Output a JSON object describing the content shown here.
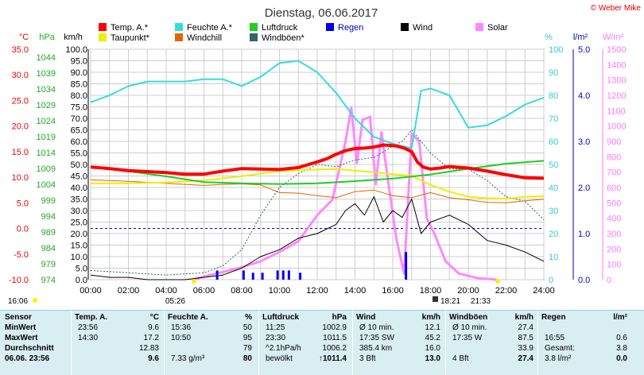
{
  "title": "Dienstag, 06.06.2017",
  "copyright": "© Weber Mike",
  "colors": {
    "temp": "#ff0000",
    "humidity": "#33dddd",
    "pressure": "#22cc22",
    "wind": "#000000",
    "dew": "#eeee00",
    "windchill": "#dd6600",
    "gust": "#336666",
    "rain": "#0000ee",
    "solar": "#ff88ff",
    "stats_bg": "#d8eef2"
  },
  "legend": [
    {
      "label": "Temp. A.*",
      "color": "#ff0000"
    },
    {
      "label": "Feuchte A.*",
      "color": "#33dddd"
    },
    {
      "label": "Luftdruck",
      "color": "#22cc22"
    },
    {
      "label": "Regen",
      "color": "#0000ee"
    },
    {
      "label": "Wind",
      "color": "#000000"
    },
    {
      "label": "Solar",
      "color": "#ff88ff"
    },
    {
      "label": "Taupunkt*",
      "color": "#eeee00"
    },
    {
      "label": "Windchill",
      "color": "#dd6600"
    },
    {
      "label": "Windböen*",
      "color": "#336666"
    }
  ],
  "axis_units": {
    "temp": "°C",
    "pressure": "hPa",
    "wind": "km/h",
    "humidity": "%",
    "rain": "l/m²",
    "solar": "W/m²"
  },
  "axes": {
    "temp": [
      "35.0",
      "30.0",
      "25.0",
      "20.0",
      "15.0",
      "10.0",
      "5.0",
      "0.0",
      "-5.0",
      "-10.0"
    ],
    "pressure": [
      "1044",
      "1039",
      "1034",
      "1029",
      "1024",
      "1019",
      "1014",
      "1009",
      "1004",
      "999",
      "994",
      "989",
      "984",
      "979",
      "974"
    ],
    "wind": [
      "100.0",
      "95.0",
      "90.0",
      "85.0",
      "80.0",
      "75.0",
      "70.0",
      "65.0",
      "60.0",
      "55.0",
      "50.0",
      "45.0",
      "40.0",
      "35.0",
      "30.0",
      "25.0",
      "20.0",
      "15.0",
      "10.0",
      "5.0",
      "0.0"
    ],
    "humidity": [
      "100",
      "90",
      "80",
      "70",
      "60",
      "50",
      "40",
      "30",
      "20",
      "10",
      "0"
    ],
    "rain": [
      "5.0",
      "4.0",
      "3.0",
      "2.0",
      "1.0",
      "0.0"
    ],
    "solar": [
      "1500",
      "1400",
      "1300",
      "1200",
      "1100",
      "1000",
      "900",
      "800",
      "700",
      "600",
      "500",
      "400",
      "300",
      "200",
      "100",
      "0"
    ],
    "time": [
      "00:00",
      "02:00",
      "04:00",
      "06:00",
      "08:00",
      "10:00",
      "12:00",
      "14:00",
      "16:00",
      "18:00",
      "20:00",
      "22:00",
      "24:00"
    ]
  },
  "sun": {
    "sunrise": "05:26",
    "sunset": "21:33",
    "daylight": "16:06",
    "solar_noon": "18:21"
  },
  "chart_data": {
    "type": "line",
    "x_unit": "hour",
    "xlim": [
      0,
      24
    ],
    "series": [
      {
        "name": "Temp. A.*",
        "axis": "temp",
        "unit": "°C",
        "x": [
          0,
          1,
          2,
          3,
          4,
          5,
          6,
          7,
          8,
          9,
          10,
          11,
          12,
          12.5,
          13,
          13.5,
          14,
          14.5,
          15,
          15.5,
          16,
          16.3,
          16.6,
          17,
          17.3,
          17.6,
          18,
          18.5,
          19,
          20,
          21,
          22,
          23,
          24
        ],
        "y": [
          12.0,
          11.7,
          11.3,
          11.1,
          10.9,
          10.6,
          10.6,
          11.2,
          11.7,
          11.6,
          11.5,
          11.9,
          13.0,
          13.6,
          14.5,
          15.2,
          15.6,
          15.7,
          15.9,
          16.3,
          16.2,
          16.0,
          15.7,
          15.0,
          13.0,
          12.0,
          11.6,
          11.8,
          12.1,
          11.8,
          11.2,
          10.5,
          9.9,
          9.8
        ]
      },
      {
        "name": "Feuchte A.*",
        "axis": "humidity",
        "unit": "%",
        "x": [
          0,
          1,
          2,
          3,
          4,
          5,
          6,
          7,
          8,
          9,
          10,
          11,
          12,
          13,
          14,
          15,
          16,
          17,
          17.5,
          18,
          19,
          20,
          21,
          22,
          23,
          24
        ],
        "y": [
          77,
          80,
          84,
          86,
          86,
          86,
          87,
          87,
          84,
          88,
          94,
          95,
          90,
          81,
          70,
          62,
          59,
          57,
          82,
          83,
          80,
          66,
          67,
          71,
          76,
          79
        ]
      },
      {
        "name": "Luftdruck",
        "axis": "pressure",
        "unit": "hPa",
        "x": [
          0,
          2,
          4,
          6,
          8,
          10,
          12,
          14,
          16,
          18,
          20,
          22,
          24
        ],
        "y": [
          1009.5,
          1008.1,
          1006.5,
          1004.7,
          1004.3,
          1004.1,
          1004.3,
          1005.0,
          1005.8,
          1007.1,
          1008.9,
          1010.5,
          1011.4
        ]
      },
      {
        "name": "Taupunkt*",
        "axis": "temp",
        "unit": "°C",
        "x": [
          0,
          2,
          4,
          6,
          8,
          10,
          12,
          13,
          14,
          15,
          16,
          17,
          18,
          19,
          20,
          21,
          22,
          23,
          24
        ],
        "y": [
          8.8,
          8.8,
          9.0,
          9.4,
          10.2,
          11.2,
          11.5,
          11.6,
          11.3,
          11.0,
          10.6,
          10.3,
          8.5,
          7.2,
          6.2,
          5.9,
          5.8,
          6.2,
          6.3
        ]
      },
      {
        "name": "Windchill",
        "axis": "temp",
        "unit": "°C",
        "x": [
          0,
          2,
          4,
          6,
          7,
          8,
          9,
          10,
          11,
          12,
          13,
          14,
          15,
          16,
          17,
          18,
          19,
          20,
          21,
          22,
          23,
          24
        ],
        "y": [
          9.5,
          9.2,
          8.8,
          8.4,
          8.6,
          8.7,
          8.5,
          7.0,
          6.9,
          6.4,
          6.0,
          7.2,
          7.5,
          6.4,
          6.0,
          7.0,
          6.0,
          5.6,
          5.1,
          5.0,
          5.4,
          5.7
        ]
      },
      {
        "name": "Wind",
        "axis": "wind",
        "unit": "km/h",
        "x": [
          0,
          1,
          2,
          3,
          4,
          5,
          6,
          7,
          8,
          9,
          10,
          11,
          12,
          13,
          13.5,
          14,
          14.5,
          15,
          15.5,
          16,
          16.5,
          17,
          17.5,
          18,
          19,
          20,
          21,
          22,
          23,
          24
        ],
        "y": [
          2,
          1,
          1,
          0,
          0,
          0,
          1,
          2,
          5,
          10,
          13,
          18,
          20,
          24,
          30,
          33,
          28,
          36,
          25,
          30,
          27,
          35,
          20,
          25,
          28,
          24,
          17,
          15,
          12,
          8
        ]
      },
      {
        "name": "Windböen*",
        "axis": "wind",
        "unit": "km/h",
        "x": [
          0,
          2,
          4,
          6,
          7,
          8,
          9,
          10,
          11,
          12,
          13,
          14,
          15,
          16,
          16.5,
          17,
          18,
          19,
          20,
          21,
          22,
          23,
          24
        ],
        "y": [
          4,
          3,
          2,
          3,
          6,
          13,
          28,
          40,
          46,
          50,
          49,
          52,
          53,
          58,
          60,
          65,
          55,
          48,
          48,
          43,
          36,
          34,
          26
        ]
      },
      {
        "name": "Solar",
        "axis": "solar",
        "unit": "W/m²",
        "x": [
          5.4,
          6,
          7,
          8,
          9,
          10,
          11,
          12,
          12.8,
          13.5,
          13.8,
          14.1,
          14.4,
          14.8,
          15.1,
          15.4,
          15.8,
          16.2,
          16.6,
          17,
          17.4,
          17.8,
          18.2,
          18.8,
          19.5,
          20.5,
          21.5
        ],
        "y": [
          0,
          20,
          50,
          80,
          120,
          180,
          250,
          420,
          520,
          900,
          1120,
          760,
          1040,
          1060,
          620,
          960,
          600,
          260,
          40,
          950,
          900,
          400,
          300,
          120,
          40,
          10,
          0
        ]
      },
      {
        "name": "Regen",
        "axis": "rain",
        "unit": "l/m²",
        "x": [
          6.7,
          8.1,
          8.6,
          9.1,
          9.9,
          10.2,
          10.5,
          11.1,
          16.7
        ],
        "y": [
          0.2,
          0.2,
          0.15,
          0.15,
          0.2,
          0.2,
          0.2,
          0.15,
          0.6
        ]
      }
    ]
  },
  "stats": {
    "sensor": {
      "header": "Sensor",
      "rows": [
        "MinWert",
        "MaxWert",
        "Durchschnitt",
        "06.06. 23:56"
      ]
    },
    "temp": {
      "header": "Temp. A.",
      "unit": "°C",
      "rows": [
        [
          "23:56",
          "9.6"
        ],
        [
          "14:30",
          "17.2"
        ],
        [
          "",
          "12.83"
        ],
        [
          "",
          "9.6"
        ]
      ]
    },
    "humidity": {
      "header": "Feuchte A.",
      "unit": "%",
      "rows": [
        [
          "15:36",
          "50"
        ],
        [
          "10:50",
          "95"
        ],
        [
          "",
          "79"
        ],
        [
          "7.33 g/m³",
          "80"
        ]
      ]
    },
    "pressure": {
      "header": "Luftdruck",
      "unit": "hPa",
      "rows": [
        [
          "11:25",
          "1002.9"
        ],
        [
          "23:30",
          "1011.5"
        ],
        [
          "^2.1hPa/h",
          "1006.2"
        ],
        [
          "bewölkt",
          "↑1011.4"
        ]
      ]
    },
    "wind": {
      "header": "Wind",
      "unit": "km/h",
      "rows": [
        [
          "Ø 10 min.",
          "12.1"
        ],
        [
          "17:35 SW",
          "45.2"
        ],
        [
          "385.4 km",
          "16.0"
        ],
        [
          "3 Bft",
          "13.0"
        ]
      ]
    },
    "gust": {
      "header": "Windböen",
      "unit": "km/h",
      "rows": [
        [
          "Ø 10 min.",
          "27.4"
        ],
        [
          "17:35 W",
          "87.5"
        ],
        [
          "",
          "33.9"
        ],
        [
          "4 Bft",
          "27.4"
        ]
      ]
    },
    "rain": {
      "header": "Regen",
      "unit": "l/m²",
      "rows": [
        [
          "",
          ""
        ],
        [
          "16:55",
          "0.6"
        ],
        [
          "Gesamt:",
          "3.8"
        ],
        [
          "3.8 l/m²",
          "0.0"
        ]
      ]
    }
  }
}
